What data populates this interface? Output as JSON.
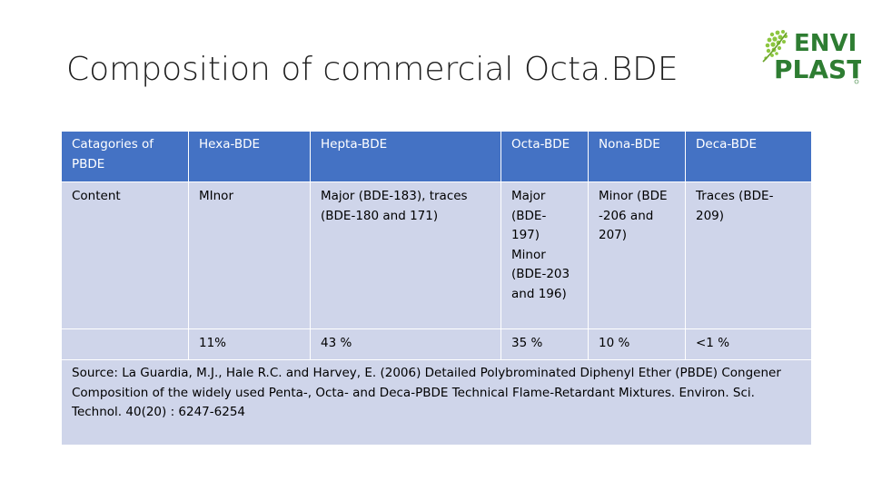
{
  "slide": {
    "title": "Composition of commercial Octa.BDE"
  },
  "logo": {
    "brand_line1": "ENVI",
    "brand_line2": "PLAST",
    "icon": "leaf-icon",
    "colors": {
      "leaf": "#8cc63f",
      "text": "#2e7d32"
    }
  },
  "table": {
    "header": [
      "Catagories of PBDE",
      "Hexa-BDE",
      "Hepta-BDE",
      "Octa-BDE",
      "Nona-BDE",
      "Deca-BDE"
    ],
    "content_row": [
      "Content",
      "MInor",
      "Major (BDE-183), traces (BDE-180 and 171)",
      "Major\n(BDE-\n197)\nMinor\n(BDE-203\nand 196)",
      "Minor (BDE\n-206 and\n207)",
      "Traces (BDE-\n209)"
    ],
    "percent_row": [
      "",
      "11%",
      "43 %",
      "35 %",
      "10 %",
      "<1 %"
    ],
    "source": "Source: La Guardia, M.J., Hale R.C. and Harvey, E. (2006) Detailed Polybrominated Diphenyl Ether (PBDE) Congener Composition of the widely used Penta-, Octa- and Deca-PBDE Technical Flame-Retardant Mixtures. Environ. Sci. Technol. 40(20) : 6247-6254",
    "colors": {
      "header_bg": "#4472c4",
      "body_bg": "#cfd5ea"
    }
  }
}
